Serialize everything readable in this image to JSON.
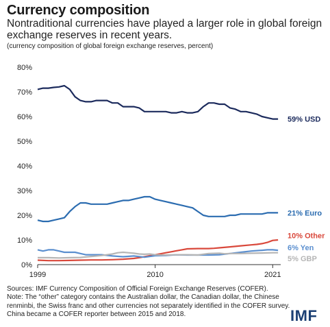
{
  "header": {
    "title": "Currency composition",
    "subtitle": "Nontraditional currencies have played a larger role in global foreign exchange reserves in recent years.",
    "unit_note": "(currency composition of global foreign exchange reserves, percent)"
  },
  "footer": {
    "sources_line1": "Sources: IMF Currency Composition of Official Foreign Exchange Reserves (COFER).",
    "sources_line2": "Note: The “other” category contains the Australian dollar, the Canadian dollar, the Chinese renminbi, the Swiss franc and other currencies not separately identified in the COFER survey. China became a COFER reporter between 2015 and 2018.",
    "logo": "IMF"
  },
  "chart_data": {
    "type": "line",
    "x_range": [
      1999,
      2021.75
    ],
    "ylim": [
      0,
      80
    ],
    "y_ticks": [
      "0%",
      "10%",
      "20%",
      "30%",
      "40%",
      "50%",
      "60%",
      "70%",
      "80%"
    ],
    "x_ticks": [
      "1999",
      "2010",
      "2021"
    ],
    "grid": false,
    "series": [
      {
        "name": "USD",
        "label": "59% USD",
        "color": "#1b2a5c",
        "x": [
          1999,
          1999.5,
          2000,
          2000.5,
          2001,
          2001.5,
          2002,
          2002.5,
          2003,
          2003.5,
          2004,
          2004.5,
          2005,
          2005.5,
          2006,
          2006.5,
          2007,
          2007.5,
          2008,
          2008.5,
          2009,
          2009.5,
          2010,
          2010.5,
          2011,
          2011.5,
          2012,
          2012.5,
          2013,
          2013.5,
          2014,
          2014.5,
          2015,
          2015.5,
          2016,
          2016.5,
          2017,
          2017.5,
          2018,
          2018.5,
          2019,
          2019.5,
          2020,
          2020.5,
          2021,
          2021.5
        ],
        "values": [
          71,
          71.5,
          71.5,
          71.8,
          72,
          72.5,
          71,
          68,
          66.5,
          66,
          66,
          66.5,
          66.5,
          66.5,
          65.5,
          65.5,
          64,
          64,
          64,
          63.5,
          62,
          62,
          62,
          62,
          62,
          61.5,
          61.5,
          62,
          61.5,
          61.5,
          62,
          64,
          65.5,
          65.5,
          65,
          65,
          63.5,
          63,
          62,
          62,
          61.5,
          61,
          60,
          59.5,
          59,
          59
        ]
      },
      {
        "name": "Euro",
        "label": "21% Euro",
        "color": "#2b6cb0",
        "x": [
          1999,
          1999.5,
          2000,
          2000.5,
          2001,
          2001.5,
          2002,
          2002.5,
          2003,
          2003.5,
          2004,
          2004.5,
          2005,
          2005.5,
          2006,
          2006.5,
          2007,
          2007.5,
          2008,
          2008.5,
          2009,
          2009.5,
          2010,
          2010.5,
          2011,
          2011.5,
          2012,
          2012.5,
          2013,
          2013.5,
          2014,
          2014.5,
          2015,
          2015.5,
          2016,
          2016.5,
          2017,
          2017.5,
          2018,
          2018.5,
          2019,
          2019.5,
          2020,
          2020.5,
          2021,
          2021.5
        ],
        "values": [
          18,
          17.5,
          17.5,
          18,
          18.5,
          19,
          21.5,
          23.5,
          25,
          25,
          24.5,
          24.5,
          24.5,
          24.5,
          25,
          25.5,
          26,
          26,
          26.5,
          27,
          27.5,
          27.5,
          26.5,
          26,
          25.5,
          25,
          24.5,
          24,
          23.5,
          23,
          21.5,
          20,
          19.5,
          19.5,
          19.5,
          19.5,
          20,
          20,
          20.5,
          20.5,
          20.5,
          20.5,
          20.5,
          21,
          21,
          21
        ]
      },
      {
        "name": "Other",
        "label": "10% Other",
        "color": "#d9483b",
        "x": [
          1999,
          2000,
          2001,
          2002,
          2003,
          2004,
          2005,
          2006,
          2007,
          2008,
          2008.5,
          2009,
          2009.5,
          2010,
          2010.5,
          2011,
          2011.5,
          2012,
          2012.5,
          2013,
          2014,
          2015,
          2015.5,
          2016,
          2017,
          2018,
          2019,
          2019.5,
          2020,
          2020.5,
          2021,
          2021.5
        ],
        "values": [
          1.8,
          1.6,
          1.6,
          1.7,
          1.8,
          1.9,
          1.9,
          2,
          2.2,
          2.5,
          2.8,
          3.2,
          3.6,
          4,
          4.4,
          4.8,
          5.2,
          5.6,
          6,
          6.4,
          6.5,
          6.5,
          6.6,
          6.8,
          7.2,
          7.6,
          8,
          8.2,
          8.5,
          9,
          9.8,
          10
        ]
      },
      {
        "name": "Yen",
        "label": "6% Yen",
        "color": "#5b8fcf",
        "x": [
          1999,
          1999.5,
          2000,
          2000.5,
          2001,
          2001.5,
          2002,
          2002.5,
          2003,
          2003.5,
          2004,
          2005,
          2006,
          2007,
          2008,
          2009,
          2010,
          2011,
          2012,
          2013,
          2014,
          2015,
          2016,
          2017,
          2018,
          2019,
          2020,
          2020.5,
          2021,
          2021.5
        ],
        "values": [
          6,
          5.5,
          6,
          6,
          5.5,
          5,
          5,
          5,
          4.5,
          4,
          4,
          4,
          3.5,
          3.2,
          3.5,
          3,
          3.6,
          3.7,
          4,
          3.9,
          3.9,
          3.9,
          4,
          4.5,
          5,
          5.5,
          5.8,
          6,
          6,
          5.8
        ]
      },
      {
        "name": "GBP",
        "label": "5% GBP",
        "color": "#b5b5b5",
        "x": [
          1999,
          2000,
          2001,
          2002,
          2003,
          2004,
          2005,
          2006,
          2006.5,
          2007,
          2007.5,
          2008,
          2008.5,
          2009,
          2009.5,
          2010,
          2010.5,
          2011,
          2012,
          2013,
          2014,
          2015,
          2016,
          2016.5,
          2017,
          2018,
          2019,
          2020,
          2021,
          2021.5
        ],
        "values": [
          2.8,
          2.8,
          2.7,
          2.8,
          2.9,
          3.3,
          3.7,
          4.3,
          4.8,
          5,
          4.8,
          4.6,
          4.3,
          4.2,
          4.3,
          4,
          3.9,
          3.9,
          4,
          4,
          3.9,
          4.5,
          4.6,
          4.4,
          4.5,
          4.5,
          4.6,
          4.7,
          4.8,
          4.8
        ]
      }
    ]
  }
}
